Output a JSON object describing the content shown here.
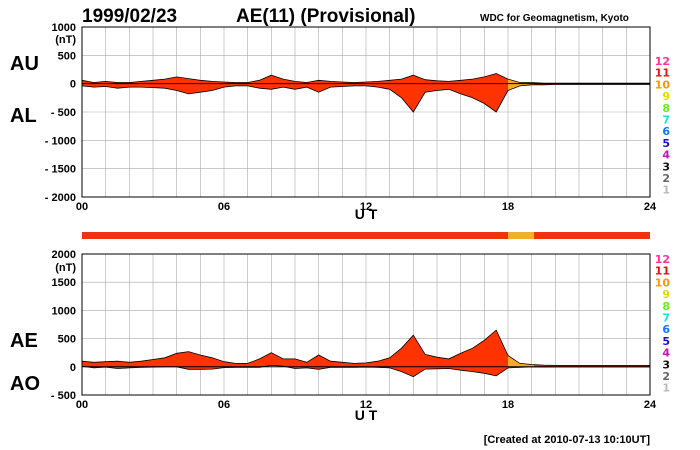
{
  "header": {
    "date": "1999/02/23",
    "title": "AE(11) (Provisional)",
    "source": "WDC for Geomagnetism, Kyoto"
  },
  "footer": {
    "created": "[Created at 2010-07-13 10:10UT]"
  },
  "colors": {
    "fill_main": "#ff3300",
    "fill_alt": "#ffaa22",
    "bar_main": "#ee3311",
    "bar_alt": "#f0b030"
  },
  "legend": {
    "stations": [
      {
        "label": "12",
        "color": "#ff3399"
      },
      {
        "label": "11",
        "color": "#ee1111"
      },
      {
        "label": "10",
        "color": "#ff9900"
      },
      {
        "label": "9",
        "color": "#dddd00"
      },
      {
        "label": "8",
        "color": "#66ee22"
      },
      {
        "label": "7",
        "color": "#22dddd"
      },
      {
        "label": "6",
        "color": "#1177ff"
      },
      {
        "label": "5",
        "color": "#2211cc"
      },
      {
        "label": "4",
        "color": "#cc11cc"
      },
      {
        "label": "3",
        "color": "#111111"
      },
      {
        "label": "2",
        "color": "#666666"
      },
      {
        "label": "1",
        "color": "#bbbbbb"
      }
    ]
  },
  "chart_data": [
    {
      "type": "area",
      "panel": "top",
      "labels": {
        "upper": "AU",
        "lower": "AL"
      },
      "unit": "(nT)",
      "xlabel": "U T",
      "xlim": [
        0,
        24
      ],
      "ylim": [
        -2000,
        1000
      ],
      "xticks": [
        "00",
        "06",
        "12",
        "18",
        "24"
      ],
      "yticks": [
        "1000",
        "500",
        "0",
        "- 500",
        "- 1000",
        "- 1500",
        "- 2000"
      ],
      "x_hours": [
        0,
        0.5,
        1,
        1.5,
        2,
        2.5,
        3,
        3.5,
        4,
        4.5,
        5,
        5.5,
        6,
        6.5,
        7,
        7.5,
        8,
        8.5,
        9,
        9.5,
        10,
        10.5,
        11,
        11.5,
        12,
        12.5,
        13,
        13.5,
        14,
        14.5,
        15,
        15.5,
        16,
        16.5,
        17,
        17.5,
        18,
        18.5,
        19,
        19.5,
        20,
        21,
        22,
        23,
        24
      ],
      "series": [
        {
          "name": "AU",
          "values": [
            60,
            20,
            40,
            20,
            20,
            40,
            60,
            80,
            120,
            90,
            60,
            40,
            30,
            20,
            20,
            60,
            150,
            80,
            40,
            20,
            60,
            40,
            30,
            20,
            30,
            40,
            60,
            80,
            150,
            70,
            50,
            40,
            60,
            80,
            120,
            180,
            80,
            20,
            20,
            10,
            10,
            10,
            10,
            10,
            10
          ]
        },
        {
          "name": "AL",
          "values": [
            -40,
            -60,
            -50,
            -80,
            -60,
            -60,
            -70,
            -80,
            -120,
            -180,
            -150,
            -120,
            -60,
            -40,
            -40,
            -80,
            -100,
            -60,
            -100,
            -60,
            -150,
            -60,
            -50,
            -40,
            -40,
            -60,
            -100,
            -250,
            -500,
            -150,
            -120,
            -100,
            -180,
            -250,
            -350,
            -500,
            -120,
            -40,
            -20,
            -20,
            -15,
            -15,
            -15,
            -15,
            -15
          ]
        }
      ],
      "highlight_range": [
        18.0,
        19.1
      ]
    },
    {
      "type": "area",
      "panel": "bottom",
      "labels": {
        "upper": "AE",
        "lower": "AO"
      },
      "unit": "(nT)",
      "xlabel": "U T",
      "xlim": [
        0,
        24
      ],
      "ylim": [
        -500,
        2000
      ],
      "xticks": [
        "00",
        "06",
        "12",
        "18",
        "24"
      ],
      "yticks": [
        "2000",
        "1500",
        "1000",
        "500",
        "0",
        "- 500"
      ],
      "x_hours": [
        0,
        0.5,
        1,
        1.5,
        2,
        2.5,
        3,
        3.5,
        4,
        4.5,
        5,
        5.5,
        6,
        6.5,
        7,
        7.5,
        8,
        8.5,
        9,
        9.5,
        10,
        10.5,
        11,
        11.5,
        12,
        12.5,
        13,
        13.5,
        14,
        14.5,
        15,
        15.5,
        16,
        16.5,
        17,
        17.5,
        18,
        18.5,
        19,
        19.5,
        20,
        21,
        22,
        23,
        24
      ],
      "series": [
        {
          "name": "AE",
          "values": [
            100,
            80,
            90,
            100,
            80,
            100,
            130,
            160,
            240,
            270,
            210,
            160,
            90,
            60,
            60,
            140,
            250,
            140,
            140,
            80,
            210,
            100,
            80,
            60,
            70,
            100,
            160,
            330,
            560,
            220,
            170,
            140,
            240,
            330,
            470,
            650,
            200,
            60,
            40,
            30,
            25,
            25,
            25,
            25,
            25
          ]
        },
        {
          "name": "AO",
          "values": [
            10,
            -20,
            -5,
            -30,
            -20,
            -10,
            -5,
            0,
            0,
            -45,
            -45,
            -40,
            -15,
            -10,
            -10,
            -10,
            25,
            10,
            -30,
            -20,
            -45,
            -10,
            -10,
            -10,
            -5,
            -10,
            -20,
            -85,
            -175,
            -40,
            -35,
            -30,
            -60,
            -85,
            -115,
            -160,
            -20,
            -10,
            0,
            -5,
            -3,
            -3,
            -3,
            -3,
            -3
          ]
        }
      ],
      "highlight_range": [
        18.0,
        19.1
      ]
    }
  ],
  "status_bar": {
    "segments": [
      {
        "from": 0,
        "to": 18.0,
        "kind": "main"
      },
      {
        "from": 18.0,
        "to": 19.1,
        "kind": "alt"
      },
      {
        "from": 19.1,
        "to": 24,
        "kind": "main"
      }
    ]
  }
}
